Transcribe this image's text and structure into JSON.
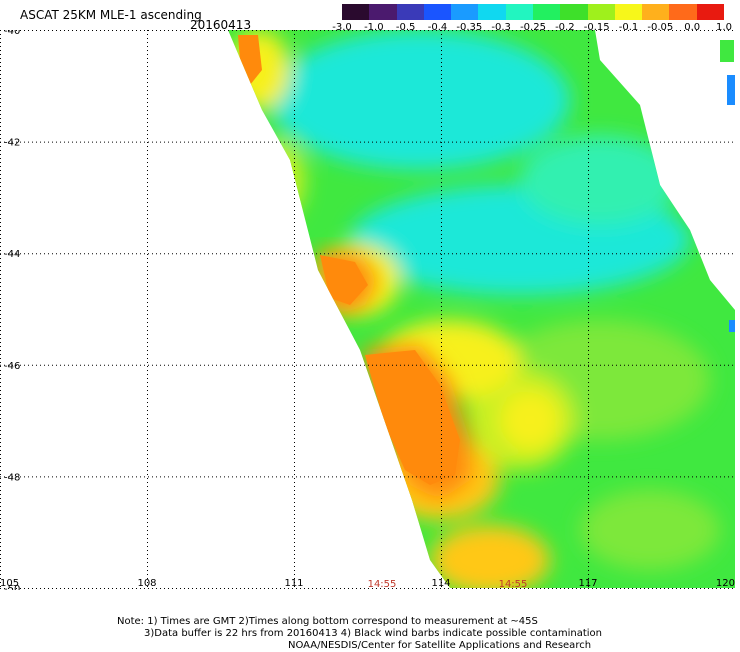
{
  "header": {
    "title": "ASCAT 25KM MLE-1 ascending",
    "date": "20160413"
  },
  "colorbar": {
    "tick_labels": [
      "-3.0",
      "-1.0",
      "-0.5",
      "-0.4",
      "-0.35",
      "-0.3",
      "-0.25",
      "-0.2",
      "-0.15",
      "-0.1",
      "-0.05",
      "0.0",
      "1.0"
    ],
    "colors": [
      "#2a0a2e",
      "#4b1a6e",
      "#3a3ab8",
      "#1a55ff",
      "#1a9bff",
      "#10d8f0",
      "#22f5c0",
      "#22f060",
      "#3ee02a",
      "#9ff01c",
      "#f7f71a",
      "#ffb01c",
      "#ff6a1a",
      "#e81a10"
    ]
  },
  "map": {
    "lat_labels": [
      "-40",
      "-42",
      "-44",
      "-46",
      "-48",
      "-50"
    ],
    "lon_labels": [
      "105",
      "108",
      "111",
      "114",
      "117",
      "120"
    ],
    "time_labels": [
      "14:55",
      "14:55"
    ],
    "colors": {
      "cyan": "#1ee8d8",
      "teal": "#30f0b0",
      "green": "#40e840",
      "light_green": "#7de83a",
      "yellow_green": "#c8f020",
      "yellow": "#f7f01a",
      "orange_yellow": "#ffc818",
      "orange": "#ff8a0c",
      "blue": "#1a8cff"
    }
  },
  "notes": {
    "line1": "Note: 1) Times are GMT 2)Times along bottom correspond to measurement at ~45S",
    "line2": "3)Data buffer is 22 hrs from 20160413 4) Black wind barbs indicate possible contamination",
    "line3": "NOAA/NESDIS/Center for Satellite Applications and Research"
  }
}
